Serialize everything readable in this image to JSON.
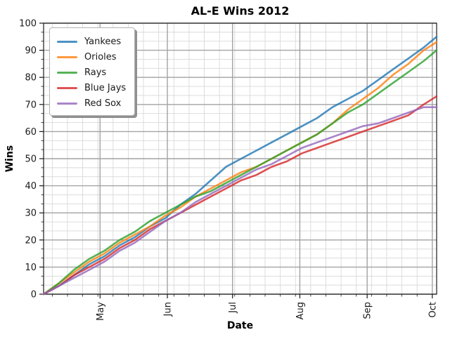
{
  "chart_data": {
    "type": "line",
    "title": "AL-E Wins 2012",
    "xlabel": "Date",
    "ylabel": "Wins",
    "ylim": [
      0,
      100
    ],
    "y_major_ticks": [
      0,
      10,
      20,
      30,
      40,
      50,
      60,
      70,
      80,
      90,
      100
    ],
    "y_minor_divisions": 3,
    "grid": true,
    "legend_position": "upper left",
    "x_range": [
      0,
      181
    ],
    "x_major_ticks": [
      {
        "label": "May",
        "day": 26
      },
      {
        "label": "Jun",
        "day": 57
      },
      {
        "label": "Jul",
        "day": 87
      },
      {
        "label": "Aug",
        "day": 118
      },
      {
        "label": "Sep",
        "day": 149
      },
      {
        "label": "Oct",
        "day": 179
      }
    ],
    "x_minor_tick_days": [
      4,
      11,
      18,
      25,
      32,
      39,
      46,
      53,
      60,
      67,
      74,
      81,
      88,
      95,
      102,
      109,
      116,
      123,
      130,
      137,
      144,
      151,
      158,
      165,
      172
    ],
    "x_days": [
      0,
      7,
      14,
      21,
      28,
      35,
      42,
      49,
      56,
      63,
      70,
      77,
      84,
      91,
      98,
      105,
      112,
      119,
      126,
      133,
      140,
      147,
      154,
      161,
      168,
      175,
      181
    ],
    "line_alpha": 0.8,
    "series": [
      {
        "name": "Yankees",
        "color": "#1f77b4",
        "values": [
          0,
          3,
          7,
          11,
          14,
          18,
          21,
          25,
          28,
          33,
          37,
          42,
          47,
          50,
          53,
          56,
          59,
          62,
          65,
          69,
          72,
          75,
          79,
          83,
          87,
          91,
          95
        ]
      },
      {
        "name": "Orioles",
        "color": "#ff7f0e",
        "values": [
          0,
          4,
          8,
          12,
          15,
          19,
          22,
          25,
          29,
          32,
          36,
          39,
          42,
          45,
          47,
          50,
          53,
          56,
          59,
          63,
          68,
          72,
          76,
          81,
          85,
          90,
          93
        ]
      },
      {
        "name": "Rays",
        "color": "#2ca02c",
        "values": [
          0,
          4,
          9,
          13,
          16,
          20,
          23,
          27,
          30,
          33,
          36,
          38,
          41,
          44,
          47,
          50,
          53,
          56,
          59,
          63,
          67,
          70,
          74,
          78,
          82,
          86,
          90
        ]
      },
      {
        "name": "Blue Jays",
        "color": "#d62728",
        "values": [
          0,
          3,
          7,
          10,
          13,
          17,
          20,
          24,
          27,
          30,
          33,
          36,
          39,
          42,
          44,
          47,
          49,
          52,
          54,
          56,
          58,
          60,
          62,
          64,
          66,
          70,
          73
        ]
      },
      {
        "name": "Red Sox",
        "color": "#9467bd",
        "values": [
          0,
          3,
          6,
          9,
          12,
          16,
          19,
          23,
          27,
          30,
          34,
          37,
          40,
          43,
          46,
          48,
          51,
          54,
          56,
          58,
          60,
          62,
          63,
          65,
          67,
          69,
          69
        ]
      }
    ]
  }
}
